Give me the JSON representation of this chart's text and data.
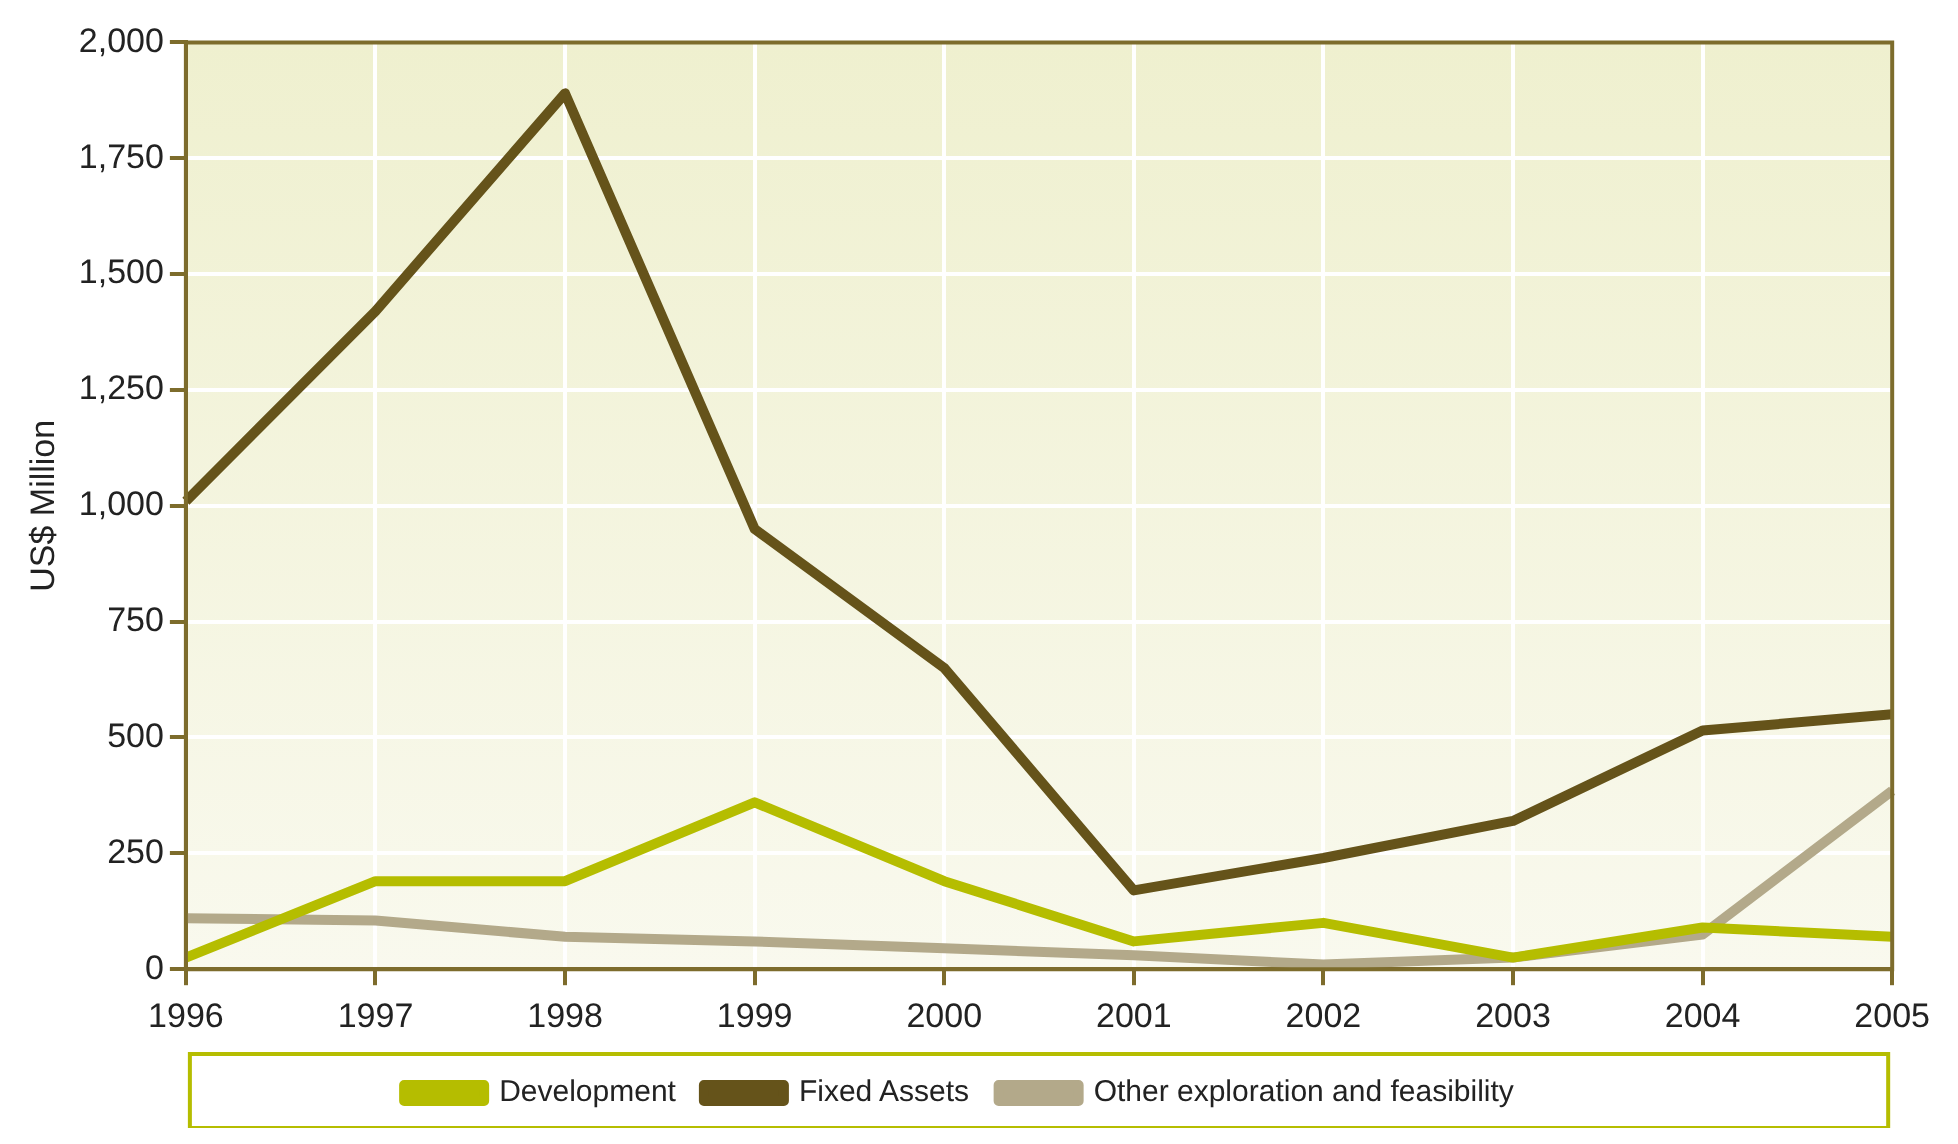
{
  "chart_data": {
    "type": "line",
    "ylabel": "US$ Million",
    "categories": [
      "1996",
      "1997",
      "1998",
      "1999",
      "2000",
      "2001",
      "2002",
      "2003",
      "2004",
      "2005"
    ],
    "series": [
      {
        "name": "Development",
        "color": "#b5bd00",
        "values": [
          25,
          190,
          190,
          360,
          190,
          60,
          100,
          25,
          90,
          70
        ]
      },
      {
        "name": "Fixed Assets",
        "color": "#65531a",
        "values": [
          1010,
          1420,
          1890,
          950,
          650,
          170,
          240,
          320,
          515,
          550
        ]
      },
      {
        "name": "Other exploration and feasibility",
        "color": "#b3a98a",
        "values": [
          110,
          105,
          70,
          60,
          45,
          30,
          10,
          25,
          75,
          385
        ]
      }
    ],
    "ylim": [
      0,
      2000
    ],
    "yticks": [
      0,
      250,
      500,
      750,
      {
        "value": 1000,
        "label": "1,000"
      },
      {
        "value": 1250,
        "label": "1,250"
      },
      {
        "value": 1500,
        "label": "1,500"
      },
      {
        "value": 1750,
        "label": "1,750"
      },
      {
        "value": 2000,
        "label": "2,000"
      }
    ],
    "grid": true,
    "legend": "bottom",
    "marker": "none",
    "line_style": "solid"
  }
}
